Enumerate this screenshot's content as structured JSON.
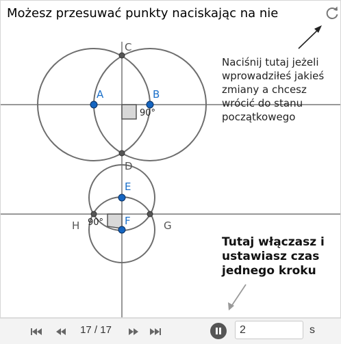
{
  "title": "Możesz przesuwać punkty naciskając na nie",
  "reset_note": "Naciśnij tutaj jeżeli wprowadziłeś jakieś zmiany a chcesz wrócić do stanu początkowego",
  "step_note": "Tutaj włączasz i ustawiasz czas jednego kroku",
  "points": {
    "A": "A",
    "B": "B",
    "C": "C",
    "D": "D",
    "E": "E",
    "F": "F",
    "G": "G",
    "H": "H"
  },
  "angle_labels": {
    "top": "90°",
    "bottom": "90°"
  },
  "colors": {
    "free_point": "#1565c0",
    "fixed_point": "#555555",
    "label_blue": "#1a6fc9",
    "circle": "#6d6d6d"
  },
  "player": {
    "step_counter": "17 / 17",
    "step_time_value": "2",
    "unit": "s",
    "controls": [
      "skip-to-start",
      "step-back",
      "step-forward",
      "skip-to-end",
      "pause"
    ]
  }
}
